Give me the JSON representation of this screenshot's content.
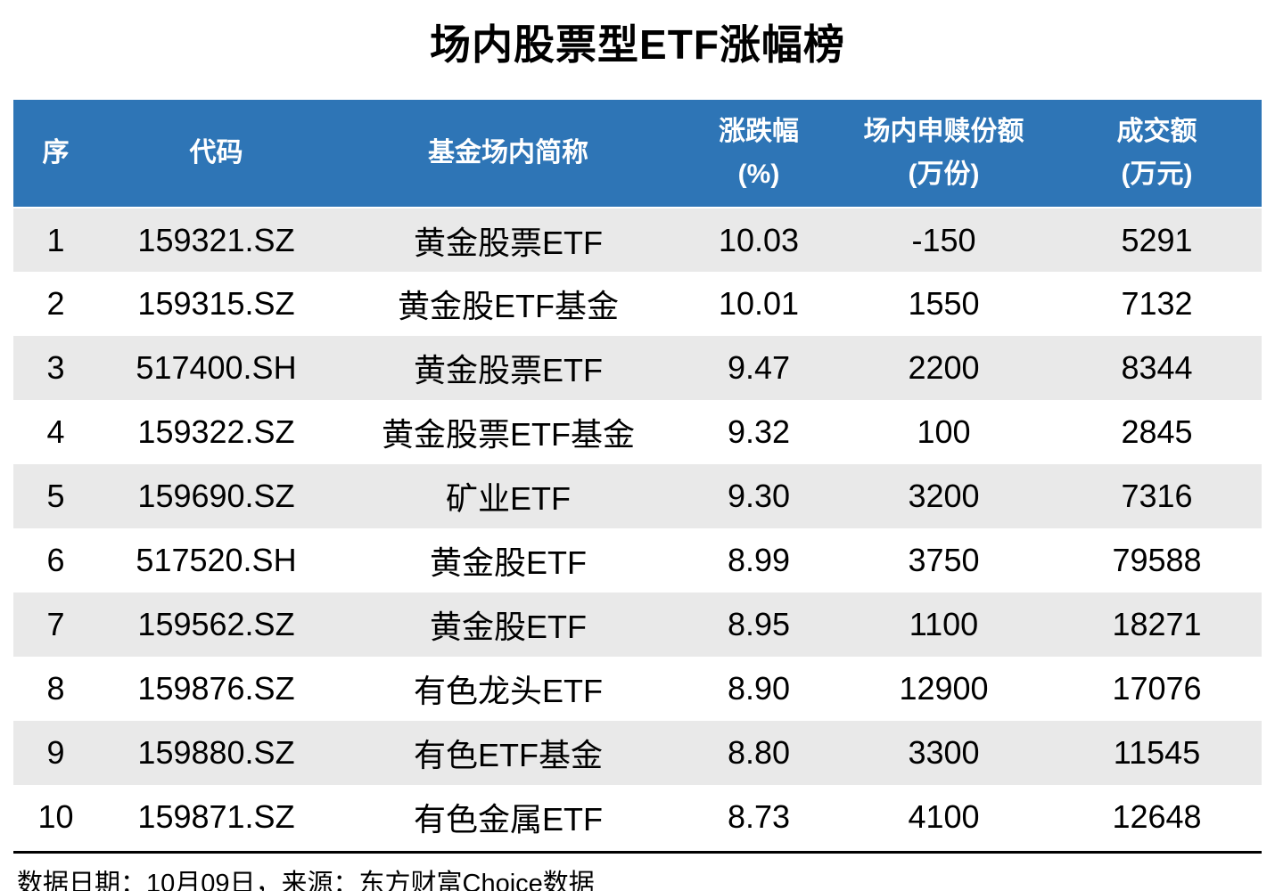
{
  "title": "场内股票型ETF涨幅榜",
  "colors": {
    "header_bg": "#2E75B6",
    "header_text": "#FFFFFF",
    "row_stripe": "#E9E9E9",
    "row_plain": "#FFFFFF",
    "body_text": "#000000",
    "divider": "#000000"
  },
  "chart_data": {
    "type": "table",
    "title": "场内股票型ETF涨幅榜",
    "legend_position": "none",
    "columns": [
      {
        "label": "序",
        "unit": ""
      },
      {
        "label": "代码",
        "unit": ""
      },
      {
        "label": "基金场内简称",
        "unit": ""
      },
      {
        "label": "涨跌幅",
        "unit": "(%)"
      },
      {
        "label": "场内申赎份额",
        "unit": "(万份)"
      },
      {
        "label": "成交额",
        "unit": "(万元)"
      }
    ],
    "rows": [
      {
        "seq": "1",
        "code": "159321.SZ",
        "name": "黄金股票ETF",
        "change_pct": "10.03",
        "shares": "-150",
        "turnover": "5291"
      },
      {
        "seq": "2",
        "code": "159315.SZ",
        "name": "黄金股ETF基金",
        "change_pct": "10.01",
        "shares": "1550",
        "turnover": "7132"
      },
      {
        "seq": "3",
        "code": "517400.SH",
        "name": "黄金股票ETF",
        "change_pct": "9.47",
        "shares": "2200",
        "turnover": "8344"
      },
      {
        "seq": "4",
        "code": "159322.SZ",
        "name": "黄金股票ETF基金",
        "change_pct": "9.32",
        "shares": "100",
        "turnover": "2845"
      },
      {
        "seq": "5",
        "code": "159690.SZ",
        "name": "矿业ETF",
        "change_pct": "9.30",
        "shares": "3200",
        "turnover": "7316"
      },
      {
        "seq": "6",
        "code": "517520.SH",
        "name": "黄金股ETF",
        "change_pct": "8.99",
        "shares": "3750",
        "turnover": "79588"
      },
      {
        "seq": "7",
        "code": "159562.SZ",
        "name": "黄金股ETF",
        "change_pct": "8.95",
        "shares": "1100",
        "turnover": "18271"
      },
      {
        "seq": "8",
        "code": "159876.SZ",
        "name": "有色龙头ETF",
        "change_pct": "8.90",
        "shares": "12900",
        "turnover": "17076"
      },
      {
        "seq": "9",
        "code": "159880.SZ",
        "name": "有色ETF基金",
        "change_pct": "8.80",
        "shares": "3300",
        "turnover": "11545"
      },
      {
        "seq": "10",
        "code": "159871.SZ",
        "name": "有色金属ETF",
        "change_pct": "8.73",
        "shares": "4100",
        "turnover": "12648"
      }
    ]
  },
  "footer": {
    "note": "数据日期：10月09日，来源：东方财富Choice数据"
  }
}
